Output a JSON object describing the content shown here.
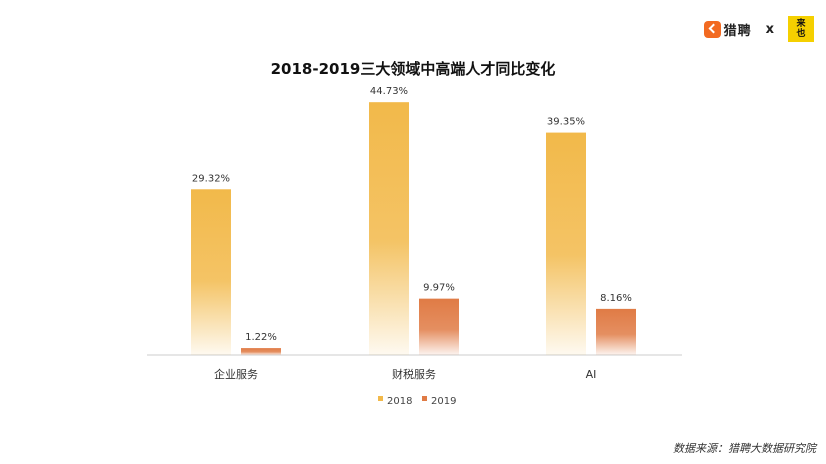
{
  "logo": {
    "liepin": "猎聘",
    "x": "x",
    "laiye_top": "来",
    "laiye_bottom": "也"
  },
  "source": "数据来源：猎聘大数据研究院",
  "chart_data": {
    "type": "bar",
    "title": "2018-2019三大领域中高端人才同比变化",
    "categories": [
      "企业服务",
      "财税服务",
      "AI"
    ],
    "series": [
      {
        "name": "2018",
        "values": [
          29.32,
          44.73,
          39.35
        ],
        "labels": [
          "29.32%",
          "44.73%",
          "39.35%"
        ],
        "color": "#f2b94a"
      },
      {
        "name": "2019",
        "values": [
          1.22,
          9.97,
          8.16
        ],
        "labels": [
          "1.22%",
          "9.97%",
          "8.16%"
        ],
        "color": "#e07b45"
      }
    ],
    "ylim": [
      0,
      45
    ],
    "legend": "bottom",
    "grid": false
  }
}
